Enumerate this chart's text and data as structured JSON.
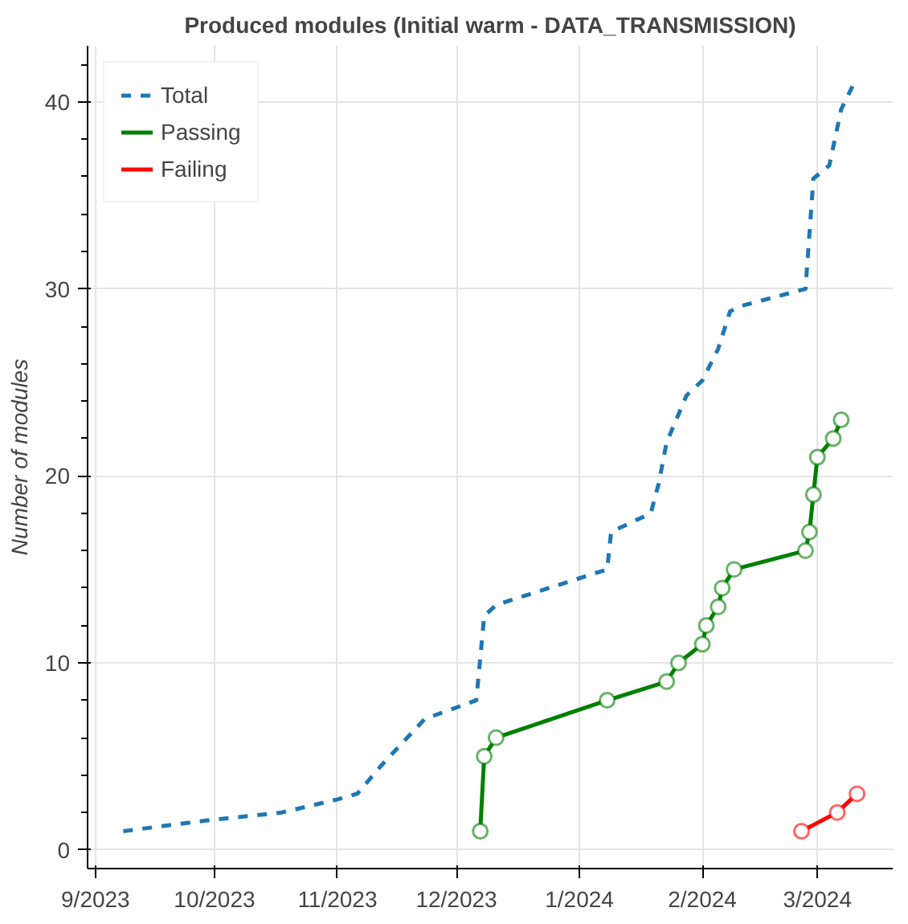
{
  "chart_data": {
    "type": "line",
    "title": "Produced modules (Initial warm - DATA_TRANSMISSION)",
    "ylabel": "Number of modules",
    "xlim": [
      "2023-08-30",
      "2024-03-20"
    ],
    "ylim": [
      -1,
      43
    ],
    "yticks": [
      0,
      10,
      20,
      30,
      40
    ],
    "xticks": [
      {
        "value": "2023-09-01",
        "label": "9/2023"
      },
      {
        "value": "2023-10-01",
        "label": "10/2023"
      },
      {
        "value": "2023-11-01",
        "label": "11/2023"
      },
      {
        "value": "2023-12-01",
        "label": "12/2023"
      },
      {
        "value": "2024-01-01",
        "label": "1/2024"
      },
      {
        "value": "2024-02-01",
        "label": "2/2024"
      },
      {
        "value": "2024-03-01",
        "label": "3/2024"
      }
    ],
    "grid": true,
    "legend": "top left",
    "series": [
      {
        "name": "Total",
        "color": "#1f77b4",
        "line_style": "dashed",
        "marker": "none",
        "x": [
          "2023-09-08",
          "2023-09-30",
          "2023-10-18",
          "2023-11-01",
          "2023-11-06",
          "2023-11-12",
          "2023-11-23",
          "2023-12-06",
          "2023-12-08",
          "2023-12-11",
          "2024-01-08",
          "2024-01-09",
          "2024-01-19",
          "2024-01-21",
          "2024-01-23",
          "2024-01-28",
          "2024-02-01",
          "2024-02-05",
          "2024-02-08",
          "2024-02-11",
          "2024-02-27",
          "2024-02-29",
          "2024-03-04",
          "2024-03-07",
          "2024-03-10"
        ],
        "values": [
          1,
          1.6,
          2,
          2.7,
          3,
          4.5,
          7,
          8,
          12.5,
          13.1,
          15,
          17,
          18,
          19.6,
          21.8,
          24.3,
          25.1,
          26.8,
          28.8,
          29.1,
          30,
          35.9,
          36.6,
          39.6,
          40.9
        ]
      },
      {
        "name": "Passing",
        "color": "#008000",
        "line_style": "solid",
        "marker": "circle",
        "x": [
          "2023-12-07",
          "2023-12-08",
          "2023-12-11",
          "2024-01-08",
          "2024-01-23",
          "2024-01-26",
          "2024-02-01",
          "2024-02-02",
          "2024-02-05",
          "2024-02-06",
          "2024-02-09",
          "2024-02-27",
          "2024-02-28",
          "2024-02-29",
          "2024-03-01",
          "2024-03-05",
          "2024-03-07"
        ],
        "values": [
          1,
          5,
          6,
          8,
          9,
          10,
          11,
          12,
          13,
          14,
          15,
          16,
          17,
          19,
          21,
          22,
          23
        ]
      },
      {
        "name": "Failing",
        "color": "#ff0000",
        "line_style": "solid",
        "marker": "circle",
        "x": [
          "2024-02-26",
          "2024-03-06",
          "2024-03-11"
        ],
        "values": [
          1,
          2,
          3
        ]
      }
    ]
  }
}
